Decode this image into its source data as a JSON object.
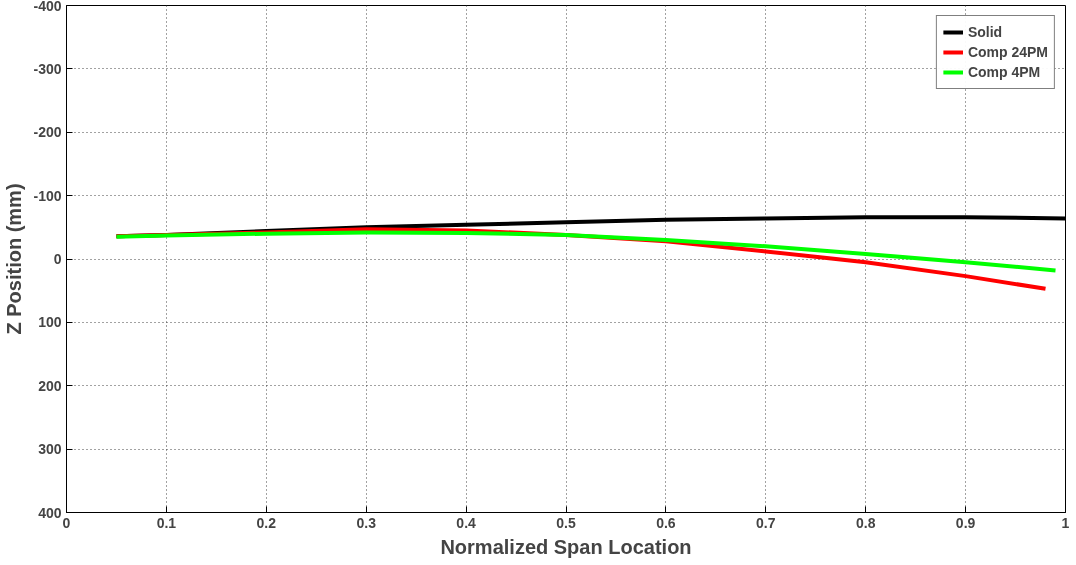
{
  "chart_data": {
    "type": "line",
    "xlabel": "Normalized Span Location",
    "ylabel": "Z Position (mm)",
    "xlim": [
      0,
      1
    ],
    "ylim": [
      400,
      -400
    ],
    "xticks": [
      0,
      0.1,
      0.2,
      0.3,
      0.4,
      0.5,
      0.6,
      0.7,
      0.8,
      0.9,
      1
    ],
    "yticks": [
      -400,
      -300,
      -200,
      -100,
      0,
      100,
      200,
      300,
      400
    ],
    "grid": true,
    "legend": "top right",
    "line_style": "solid",
    "series": [
      {
        "name": "Solid",
        "color": "#000000",
        "x": [
          0.05,
          0.1,
          0.2,
          0.3,
          0.4,
          0.5,
          0.6,
          0.7,
          0.8,
          0.9,
          1.0
        ],
        "values": [
          -36,
          -38,
          -44,
          -50,
          -54,
          -58,
          -62,
          -64,
          -66,
          -66,
          -64
        ]
      },
      {
        "name": "Comp 24PM",
        "color": "#ff0000",
        "x": [
          0.05,
          0.1,
          0.2,
          0.3,
          0.4,
          0.5,
          0.6,
          0.7,
          0.8,
          0.9,
          0.98
        ],
        "values": [
          -36,
          -38,
          -42,
          -47,
          -45,
          -38,
          -28,
          -12,
          5,
          27,
          47
        ]
      },
      {
        "name": "Comp 4PM",
        "color": "#00ff00",
        "x": [
          0.05,
          0.1,
          0.2,
          0.3,
          0.4,
          0.5,
          0.6,
          0.7,
          0.8,
          0.9,
          0.99
        ],
        "values": [
          -35,
          -37,
          -40,
          -42,
          -41,
          -38,
          -30,
          -20,
          -8,
          5,
          18
        ]
      }
    ]
  }
}
